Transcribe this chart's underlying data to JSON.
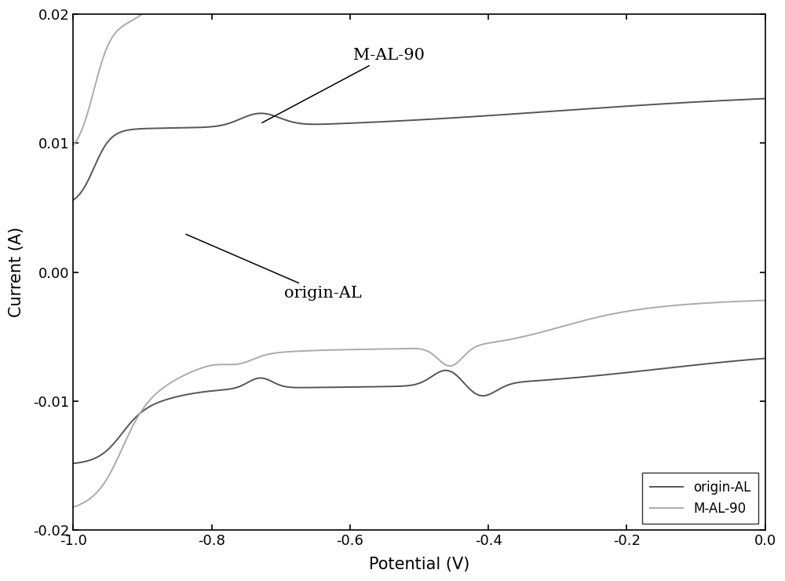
{
  "title": "",
  "xlabel": "Potential (V)",
  "ylabel": "Current (A)",
  "xlim": [
    -1.0,
    0.0
  ],
  "ylim": [
    -0.02,
    0.02
  ],
  "xticks": [
    -1.0,
    -0.8,
    -0.6,
    -0.4,
    -0.2,
    0.0
  ],
  "yticks": [
    -0.02,
    -0.01,
    0.0,
    0.01,
    0.02
  ],
  "origin_AL_color": "#555555",
  "MAL90_color": "#aaaaaa",
  "linewidth": 1.4,
  "background_color": "#ffffff"
}
